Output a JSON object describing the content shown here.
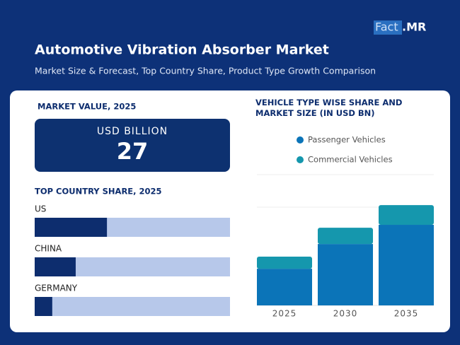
{
  "header": {
    "logo_part1": "Fact",
    "logo_part2": ".MR",
    "title": "Automotive Vibration Absorber Market",
    "subtitle": "Market Size & Forecast, Top Country Share, Product Type Growth Comparison"
  },
  "market_value": {
    "label": "MARKET VALUE, 2025",
    "unit": "USD BILLION",
    "value": "27"
  },
  "country_share": {
    "title": "TOP COUNTRY SHARE, 2025",
    "categories": [
      "US",
      "CHINA",
      "GERMANY"
    ],
    "values": [
      37,
      21,
      9
    ],
    "xlim": [
      0,
      100
    ],
    "color": "#0d2d6e",
    "track_color": "#b7c8ea"
  },
  "chart_data": {
    "type": "stacked_bar",
    "title": "VEHICLE TYPE WISE SHARE AND MARKET SIZE (IN USD BN)",
    "categories": [
      "2025",
      "2030",
      "2035"
    ],
    "ylim": [
      0,
      72
    ],
    "series": [
      {
        "name": "Passenger Vehicles",
        "color": "#0b74b8",
        "values": [
          20.3,
          34,
          44.6
        ]
      },
      {
        "name": "Commercial Vehicles",
        "color": "#1597ad",
        "values": [
          6.7,
          9,
          10.9
        ]
      }
    ]
  }
}
